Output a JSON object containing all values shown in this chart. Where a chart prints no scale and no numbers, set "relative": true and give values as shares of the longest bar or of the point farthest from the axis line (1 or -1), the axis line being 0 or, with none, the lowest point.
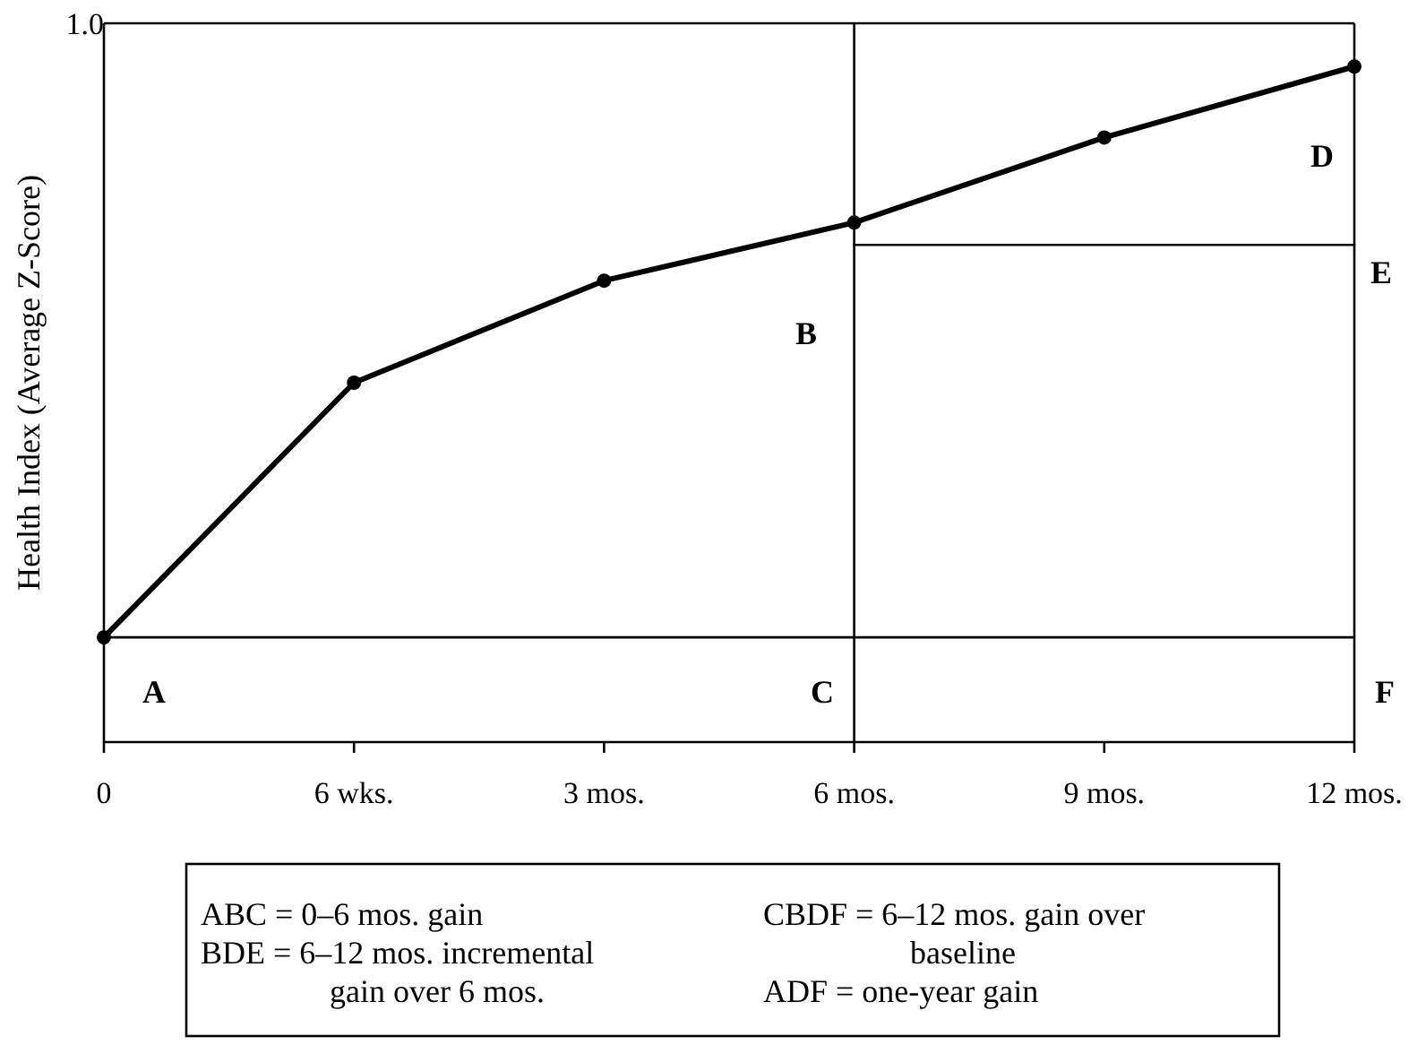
{
  "chart_data": {
    "type": "line",
    "relative": true,
    "ylabel": "Health Index (Average Z-Score)",
    "categories": [
      "0",
      "6 wks.",
      "3 mos.",
      "6 mos.",
      "9 mos.",
      "12 mos."
    ],
    "series": [
      {
        "color": "#000000",
        "values": [
          0.155,
          0.532,
          0.683,
          0.769,
          0.895,
          1.0
        ],
        "marker": "circle"
      },
      {
        "type": "line",
        "color": "#000000",
        "x": [
          "6 mos.",
          "12 mos."
        ],
        "values": [
          0.736,
          0.736
        ],
        "marker": "none"
      }
    ],
    "ref_lines": [
      {
        "axis": "y",
        "value": 0.155,
        "color": "#000000"
      },
      {
        "axis": "x",
        "value": "6 mos.",
        "color": "#000000"
      }
    ],
    "annotations": [
      "1.0",
      "A",
      "B",
      "C",
      "D",
      "E",
      "F",
      "ABC = 0–6 mos. gain",
      "BDE = 6–12 mos. incremental gain over 6 mos.",
      "CBDF = 6–12 mos. gain over baseline",
      "ADF = one-year gain"
    ],
    "line_style": "solid"
  }
}
